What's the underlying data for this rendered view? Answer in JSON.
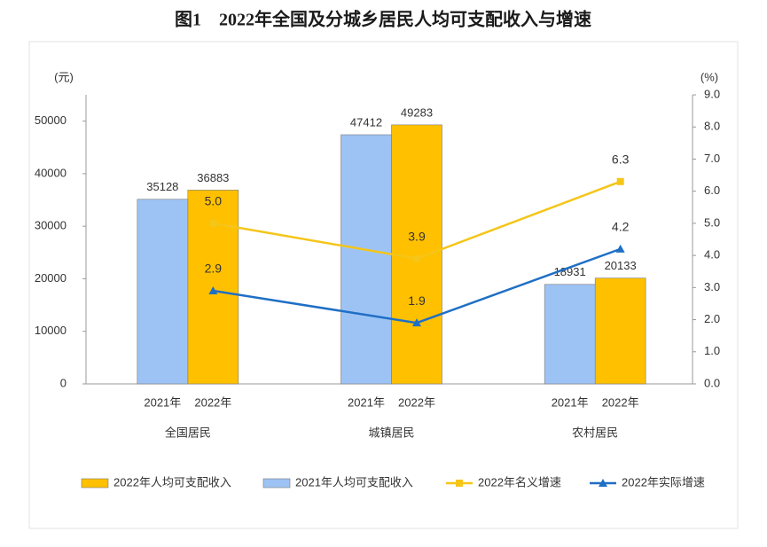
{
  "chart_data": {
    "type": "bar_line",
    "title": "图1　2022年全国及分城乡居民人均可支配收入与增速",
    "y_unit": "(元)",
    "y2_unit": "(%)",
    "categories": [
      "全国居民",
      "城镇居民",
      "农村居民"
    ],
    "bar_labels": [
      "2021年",
      "2022年"
    ],
    "series": [
      {
        "name": "2022年人均可支配收入",
        "type": "bar",
        "color": "#ffc000",
        "values": [
          36883,
          49283,
          20133
        ]
      },
      {
        "name": "2021年人均可支配收入",
        "type": "bar",
        "color": "#9dc3f5",
        "values": [
          35128,
          47412,
          18931
        ]
      },
      {
        "name": "2022年名义增速",
        "type": "line",
        "axis": "y2",
        "color": "#f5c518",
        "values": [
          5.0,
          3.9,
          6.3
        ],
        "value_labels": [
          "5.0",
          "3.9",
          "6.3"
        ]
      },
      {
        "name": "2022年实际增速",
        "type": "line",
        "axis": "y2",
        "color": "#1f6fc5",
        "values": [
          2.9,
          1.9,
          4.2
        ],
        "value_labels": [
          "2.9",
          "1.9",
          "4.2"
        ]
      }
    ],
    "ylim": [
      0,
      55000
    ],
    "yticks": [
      0,
      10000,
      20000,
      30000,
      40000,
      50000
    ],
    "y2lim": [
      0,
      9
    ],
    "y2ticks": [
      {
        "value": 0,
        "label": "0.0"
      },
      {
        "value": 1,
        "label": "1.0"
      },
      {
        "value": 2,
        "label": "2.0"
      },
      {
        "value": 3,
        "label": "3.0"
      },
      {
        "value": 4,
        "label": "4.0"
      },
      {
        "value": 5,
        "label": "5.0"
      },
      {
        "value": 6,
        "label": "6.0"
      },
      {
        "value": 7,
        "label": "7.0"
      },
      {
        "value": 8,
        "label": "8.0"
      },
      {
        "value": 9,
        "label": "9.0"
      }
    ],
    "grid": false,
    "legend": "bottom"
  }
}
